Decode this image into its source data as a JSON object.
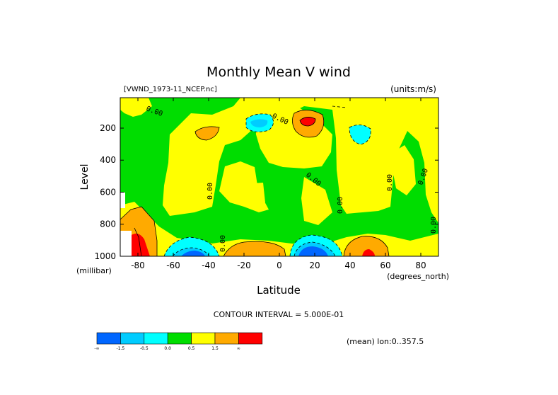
{
  "chart_data": {
    "type": "heatmap",
    "title": "Monthly Mean V wind",
    "dataset_label": "[VWND_1973-11_NCEP.nc]",
    "units_label": "(units:m/s)",
    "xlabel": "Latitude",
    "x_units": "(degrees_north)",
    "ylabel": "Level",
    "y_units": "(millibar)",
    "x_ticks": [
      "-80",
      "-60",
      "-40",
      "-20",
      "0",
      "20",
      "40",
      "60",
      "80"
    ],
    "x_tick_values": [
      -80,
      -60,
      -40,
      -20,
      0,
      20,
      40,
      60,
      80
    ],
    "y_ticks": [
      "200",
      "400",
      "600",
      "800",
      "1000"
    ],
    "y_tick_values": [
      200,
      400,
      600,
      800,
      1000
    ],
    "xlim": [
      -90,
      90
    ],
    "ylim": [
      1000,
      10
    ],
    "contour_interval_text": "CONTOUR INTERVAL = 5.000E-01",
    "mean_text": "(mean) lon:0..357.5",
    "contour_labels": [
      "0.00",
      "0.00",
      "0.00",
      "0.00",
      "0.00",
      "0.00",
      "0.00",
      "0.00",
      "0.00"
    ],
    "legend": {
      "colors": [
        "#0066ff",
        "#00ccff",
        "#00ffff",
        "#00dd00",
        "#ffff00",
        "#ffaa00",
        "#ff0000"
      ],
      "labels": [
        "-∞",
        "-1.5",
        "-0.5",
        "0.0",
        "0.5",
        "1.5",
        "∞"
      ]
    }
  }
}
